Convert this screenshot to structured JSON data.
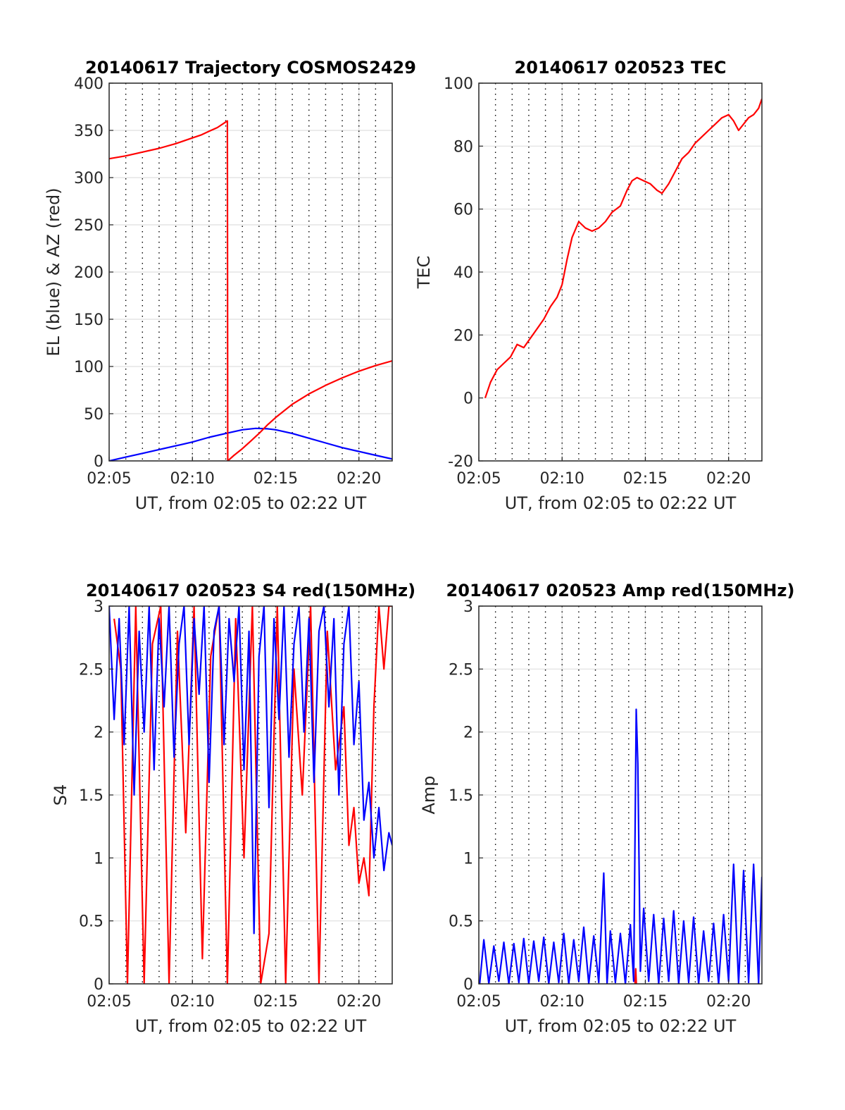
{
  "figure": {
    "background": "#ffffff",
    "red": "#ff0000",
    "blue": "#0000ff"
  },
  "chart_data": [
    {
      "id": "trajectory",
      "type": "line",
      "title": "20140617 Trajectory COSMOS2429",
      "xlabel": "UT, from 02:05 to 02:22 UT",
      "ylabel": "EL (blue) & AZ (red)",
      "x_unit": "minutes (UT 02:mm)",
      "xlim": [
        5,
        22
      ],
      "ylim": [
        0,
        400
      ],
      "xticks": [
        5,
        10,
        15,
        20
      ],
      "xtick_labels": [
        "02:05",
        "02:10",
        "02:15",
        "02:20"
      ],
      "yticks": [
        0,
        50,
        100,
        150,
        200,
        250,
        300,
        350,
        400
      ],
      "ytick_labels": [
        "0",
        "50",
        "100",
        "150",
        "200",
        "250",
        "300",
        "350",
        "400"
      ],
      "grid": true,
      "series": [
        {
          "color": "#0000ff",
          "x": [
            5,
            6,
            7,
            8,
            9,
            10,
            11,
            12,
            13,
            13.8,
            14.5,
            15,
            16,
            17,
            18,
            19,
            20,
            21,
            22
          ],
          "y": [
            0,
            4,
            8,
            12,
            16,
            20,
            25,
            29,
            33,
            34.5,
            34,
            33,
            29,
            24,
            19,
            14,
            10,
            6,
            2
          ]
        },
        {
          "color": "#ff0000",
          "x": [
            5,
            6,
            7,
            8,
            9,
            10,
            10.5,
            11,
            11.5,
            12.1,
            12.12,
            12.5,
            13,
            13.5,
            14,
            14.5,
            15,
            15.5,
            16,
            17,
            18,
            19,
            20,
            21,
            22
          ],
          "y": [
            320,
            323,
            327,
            331,
            336,
            342,
            345,
            349,
            353,
            360,
            0,
            6,
            13,
            21,
            29,
            38,
            46,
            53,
            60,
            71,
            80,
            88,
            95,
            101,
            106
          ]
        }
      ]
    },
    {
      "id": "tec",
      "type": "line",
      "title": "20140617 020523 TEC",
      "xlabel": "UT, from 02:05 to 02:22 UT",
      "ylabel": "TEC",
      "x_unit": "minutes (UT 02:mm)",
      "xlim": [
        5,
        22
      ],
      "ylim": [
        -20,
        100
      ],
      "xticks": [
        5,
        10,
        15,
        20
      ],
      "xtick_labels": [
        "02:05",
        "02:10",
        "02:15",
        "02:20"
      ],
      "yticks": [
        -20,
        0,
        20,
        40,
        60,
        80,
        100
      ],
      "ytick_labels": [
        "-20",
        "0",
        "20",
        "40",
        "60",
        "80",
        "100"
      ],
      "grid": true,
      "series": [
        {
          "color": "#ff0000",
          "x": [
            5.38,
            5.7,
            6.1,
            6.5,
            6.9,
            7.3,
            7.7,
            8.1,
            8.5,
            8.9,
            9.3,
            9.7,
            10.0,
            10.3,
            10.6,
            11.0,
            11.4,
            11.8,
            12.2,
            12.6,
            13.0,
            13.5,
            13.9,
            14.2,
            14.5,
            14.9,
            15.3,
            15.7,
            16.0,
            16.4,
            16.8,
            17.2,
            17.6,
            18.0,
            18.4,
            18.8,
            19.2,
            19.6,
            20.0,
            20.3,
            20.6,
            20.9,
            21.2,
            21.5,
            21.8,
            22.0
          ],
          "y": [
            0,
            5,
            9,
            11,
            13,
            17,
            16,
            19,
            22,
            25,
            29,
            32,
            36,
            44,
            51,
            56,
            54,
            53,
            54,
            56,
            59,
            61,
            66,
            69,
            70,
            69,
            68,
            66,
            65,
            68,
            72,
            76,
            78,
            81,
            83,
            85,
            87,
            89,
            90,
            88,
            85,
            87,
            89,
            90,
            92,
            95
          ]
        }
      ]
    },
    {
      "id": "s4",
      "type": "line",
      "title": "20140617 020523 S4 red(150MHz)",
      "xlabel": "UT, from 02:05 to 02:22 UT",
      "ylabel": "S4",
      "x_unit": "minutes (UT 02:mm)",
      "xlim": [
        5,
        22
      ],
      "ylim": [
        0,
        3
      ],
      "xticks": [
        5,
        10,
        15,
        20
      ],
      "xtick_labels": [
        "02:05",
        "02:10",
        "02:15",
        "02:20"
      ],
      "yticks": [
        0,
        0.5,
        1,
        1.5,
        2,
        2.5,
        3
      ],
      "ytick_labels": [
        "0",
        "0.5",
        "1",
        "1.5",
        "2",
        "2.5",
        "3"
      ],
      "grid": true,
      "series": [
        {
          "color": "#ff0000",
          "x": [
            5.3,
            5.7,
            6.1,
            6.6,
            7.1,
            7.6,
            8.1,
            8.6,
            9.1,
            9.6,
            10.1,
            10.6,
            11.1,
            11.6,
            12.1,
            12.6,
            13.1,
            13.6,
            14.1,
            14.6,
            15.1,
            15.6,
            16.1,
            16.6,
            17.1,
            17.6,
            18.1,
            18.6,
            19.1,
            19.4,
            19.7,
            20.0,
            20.3,
            20.6,
            20.9,
            21.2,
            21.5,
            21.8,
            22.0
          ],
          "y": [
            2.9,
            2.5,
            0.0,
            3.0,
            0.0,
            2.7,
            3.0,
            0.0,
            2.8,
            1.2,
            3.0,
            0.2,
            2.6,
            3.0,
            0.0,
            2.9,
            1.0,
            3.0,
            0.0,
            0.4,
            3.0,
            0.0,
            2.5,
            1.5,
            3.0,
            0.0,
            2.8,
            1.7,
            2.2,
            1.1,
            1.4,
            0.8,
            1.0,
            0.7,
            2.2,
            3.0,
            2.5,
            3.0,
            3.0
          ]
        },
        {
          "color": "#0000ff",
          "x": [
            5.0,
            5.3,
            5.6,
            5.9,
            6.2,
            6.5,
            6.8,
            7.1,
            7.4,
            7.7,
            8.0,
            8.3,
            8.6,
            8.9,
            9.2,
            9.5,
            9.8,
            10.1,
            10.4,
            10.7,
            11.0,
            11.3,
            11.6,
            11.9,
            12.2,
            12.5,
            12.8,
            13.1,
            13.4,
            13.7,
            14.0,
            14.3,
            14.6,
            14.9,
            15.2,
            15.5,
            15.8,
            16.1,
            16.4,
            16.7,
            17.0,
            17.3,
            17.6,
            17.9,
            18.2,
            18.5,
            18.8,
            19.1,
            19.4,
            19.7,
            20.0,
            20.3,
            20.6,
            20.9,
            21.2,
            21.5,
            21.8,
            22.0
          ],
          "y": [
            3.0,
            2.1,
            2.9,
            1.9,
            3.0,
            1.5,
            2.8,
            2.0,
            3.0,
            1.7,
            2.9,
            2.2,
            3.0,
            1.8,
            2.7,
            3.0,
            1.9,
            2.9,
            2.3,
            3.0,
            1.6,
            2.8,
            3.0,
            1.9,
            2.9,
            2.4,
            3.0,
            1.7,
            2.8,
            0.4,
            2.6,
            3.0,
            1.4,
            2.9,
            2.1,
            3.0,
            1.8,
            2.7,
            3.0,
            2.0,
            2.9,
            1.6,
            2.8,
            3.0,
            2.2,
            2.9,
            1.5,
            2.7,
            3.0,
            1.9,
            2.4,
            1.3,
            1.6,
            1.0,
            1.4,
            0.9,
            1.2,
            1.1
          ]
        }
      ]
    },
    {
      "id": "amp",
      "type": "line",
      "title": "20140617 020523 Amp red(150MHz)",
      "xlabel": "UT, from 02:05 to 02:22 UT",
      "ylabel": "Amp",
      "x_unit": "minutes (UT 02:mm)",
      "xlim": [
        5,
        22
      ],
      "ylim": [
        0,
        3
      ],
      "xticks": [
        5,
        10,
        15,
        20
      ],
      "xtick_labels": [
        "02:05",
        "02:10",
        "02:15",
        "02:20"
      ],
      "yticks": [
        0,
        0.5,
        1,
        1.5,
        2,
        2.5,
        3
      ],
      "ytick_labels": [
        "0",
        "0.5",
        "1",
        "1.5",
        "2",
        "2.5",
        "3"
      ],
      "grid": true,
      "series": [
        {
          "color": "#0000ff",
          "x": [
            5.05,
            5.3,
            5.6,
            5.9,
            6.2,
            6.5,
            6.8,
            7.1,
            7.4,
            7.7,
            8.0,
            8.3,
            8.6,
            8.9,
            9.2,
            9.5,
            9.8,
            10.1,
            10.4,
            10.7,
            11.0,
            11.3,
            11.6,
            11.9,
            12.2,
            12.5,
            12.7,
            12.9,
            13.2,
            13.5,
            13.8,
            14.1,
            14.3,
            14.45,
            14.55,
            14.7,
            14.9,
            15.2,
            15.5,
            15.8,
            16.1,
            16.4,
            16.7,
            17.0,
            17.3,
            17.6,
            17.9,
            18.2,
            18.5,
            18.8,
            19.1,
            19.4,
            19.7,
            20.0,
            20.3,
            20.6,
            20.9,
            21.2,
            21.5,
            21.8,
            22.0
          ],
          "y": [
            0.0,
            0.35,
            0.0,
            0.3,
            0.02,
            0.33,
            0.0,
            0.32,
            0.01,
            0.36,
            0.0,
            0.34,
            0.02,
            0.37,
            0.0,
            0.33,
            0.01,
            0.4,
            0.0,
            0.35,
            0.02,
            0.45,
            0.0,
            0.38,
            0.01,
            0.88,
            0.0,
            0.42,
            0.01,
            0.4,
            0.0,
            0.47,
            0.02,
            2.18,
            1.75,
            0.1,
            0.6,
            0.02,
            0.55,
            0.0,
            0.52,
            0.02,
            0.58,
            0.0,
            0.5,
            0.01,
            0.53,
            0.0,
            0.42,
            0.02,
            0.48,
            0.0,
            0.55,
            0.02,
            0.95,
            0.0,
            0.9,
            0.01,
            0.95,
            0.0,
            0.85
          ]
        },
        {
          "color": "#ff0000",
          "x": [
            14.38,
            14.42,
            14.46
          ],
          "y": [
            0.0,
            0.12,
            0.0
          ]
        }
      ]
    }
  ]
}
